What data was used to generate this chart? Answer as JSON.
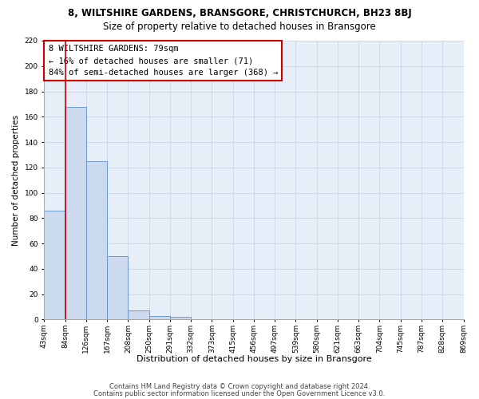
{
  "title": "8, WILTSHIRE GARDENS, BRANSGORE, CHRISTCHURCH, BH23 8BJ",
  "subtitle": "Size of property relative to detached houses in Bransgore",
  "xlabel": "Distribution of detached houses by size in Bransgore",
  "ylabel": "Number of detached properties",
  "bar_values": [
    86,
    168,
    125,
    50,
    7,
    3,
    2,
    0,
    0,
    0,
    0,
    0,
    0,
    0,
    0,
    0,
    0,
    0,
    0,
    0
  ],
  "bar_labels": [
    "43sqm",
    "84sqm",
    "126sqm",
    "167sqm",
    "208sqm",
    "250sqm",
    "291sqm",
    "332sqm",
    "373sqm",
    "415sqm",
    "456sqm",
    "497sqm",
    "539sqm",
    "580sqm",
    "621sqm",
    "663sqm",
    "704sqm",
    "745sqm",
    "787sqm",
    "828sqm",
    "869sqm"
  ],
  "bar_color": "#ccdaf0",
  "bar_edge_color": "#6090c8",
  "grid_color": "#c8d4e8",
  "background_color": "#e8eef8",
  "vline_color": "#cc0000",
  "annotation_line1": "8 WILTSHIRE GARDENS: 79sqm",
  "annotation_line2": "← 16% of detached houses are smaller (71)",
  "annotation_line3": "84% of semi-detached houses are larger (368) →",
  "annotation_box_color": "#cc0000",
  "ylim": [
    0,
    220
  ],
  "yticks": [
    0,
    20,
    40,
    60,
    80,
    100,
    120,
    140,
    160,
    180,
    200,
    220
  ],
  "title_fontsize": 8.5,
  "subtitle_fontsize": 8.5,
  "xlabel_fontsize": 8,
  "ylabel_fontsize": 7.5,
  "tick_fontsize": 6.5,
  "footer_fontsize": 6,
  "annotation_fontsize": 7.5,
  "footer_line1": "Contains HM Land Registry data © Crown copyright and database right 2024.",
  "footer_line2": "Contains public sector information licensed under the Open Government Licence v3.0."
}
